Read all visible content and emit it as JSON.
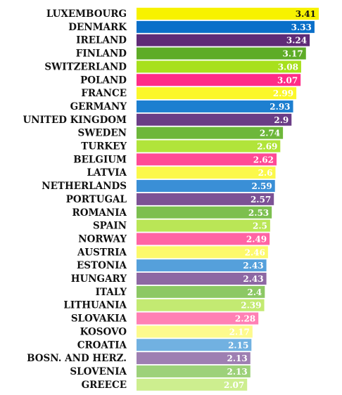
{
  "chart_data": {
    "type": "bar",
    "orientation": "horizontal",
    "categories": [
      "LUXEMBOURG",
      "DENMARK",
      "IRELAND",
      "FINLAND",
      "SWITZERLAND",
      "POLAND",
      "FRANCE",
      "GERMANY",
      "UNITED KINGDOM",
      "SWEDEN",
      "TURKEY",
      "BELGIUM",
      "LATVIA",
      "NETHERLANDS",
      "PORTUGAL",
      "ROMANIA",
      "SPAIN",
      "NORWAY",
      "AUSTRIA",
      "ESTONIA",
      "HUNGARY",
      "ITALY",
      "LITHUANIA",
      "SLOVAKIA",
      "KOSOVO",
      "CROATIA",
      "BOSN. AND HERZ.",
      "SLOVENIA",
      "GREECE"
    ],
    "values": [
      3.41,
      3.33,
      3.24,
      3.17,
      3.08,
      3.07,
      2.99,
      2.93,
      2.9,
      2.74,
      2.69,
      2.62,
      2.6,
      2.59,
      2.57,
      2.53,
      2.5,
      2.49,
      2.46,
      2.43,
      2.43,
      2.4,
      2.39,
      2.28,
      2.17,
      2.15,
      2.13,
      2.13,
      2.07
    ],
    "value_labels": [
      "3.41",
      "3.33",
      "3.24",
      "3.17",
      "3.08",
      "3.07",
      "2.99",
      "2.93",
      "2.9",
      "2.74",
      "2.69",
      "2.62",
      "2.6",
      "2.59",
      "2.57",
      "2.53",
      "2.5",
      "2.49",
      "2.46",
      "2.43",
      "2.43",
      "2.4",
      "2.39",
      "2.28",
      "2.17",
      "2.15",
      "2.13",
      "2.13",
      "2.07"
    ],
    "colors": [
      "#f7f200",
      "#0a6fc9",
      "#5f2b77",
      "#5eac27",
      "#a8e01d",
      "#ff2d87",
      "#fbf72a",
      "#1d7fd0",
      "#6a3d86",
      "#6db73a",
      "#b1e43a",
      "#ff4b95",
      "#fbf84a",
      "#3a8fd6",
      "#7c5295",
      "#7cbf4f",
      "#bae656",
      "#ff64a4",
      "#fcf96b",
      "#55a0db",
      "#8d68a3",
      "#8cc864",
      "#c3ea72",
      "#ff80b4",
      "#fdfa8d",
      "#71b1e1",
      "#9e7fb2",
      "#9dd17a",
      "#cdee8f"
    ],
    "title": "",
    "xlabel": "",
    "ylabel": "",
    "xlim": [
      0,
      3.41
    ],
    "grid": false,
    "legend": false
  }
}
